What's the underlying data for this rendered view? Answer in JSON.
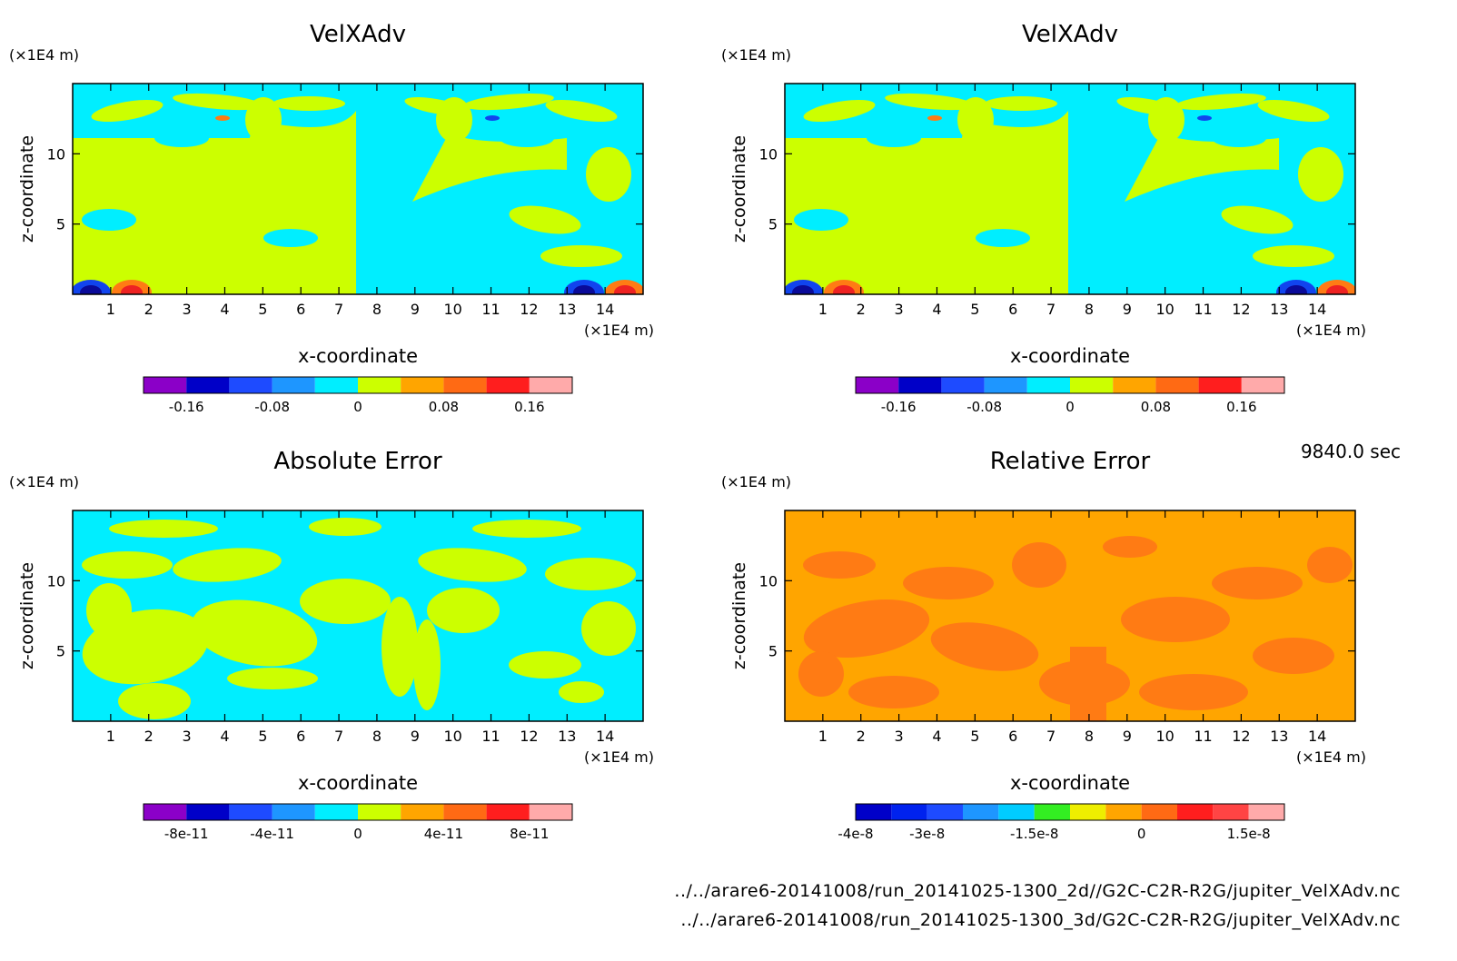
{
  "time_label": "9840.0 sec",
  "file_paths": [
    "../../arare6-20141008/run_20141025-1300_2d//G2C-C2R-R2G/jupiter_VelXAdv.nc",
    "../../arare6-20141008/run_20141025-1300_3d/G2C-C2R-R2G/jupiter_VelXAdv.nc"
  ],
  "colors": {
    "cyan": "#00eeff",
    "yellowgreen": "#ccff00",
    "orange": "#ffa500",
    "darkorange": "#ff7b14",
    "red": "#ee2222",
    "blue": "#1144ee",
    "navy": "#0a0a99"
  },
  "chart_data": [
    {
      "type": "heatmap",
      "title": "VelXAdv",
      "xlabel": "x-coordinate",
      "ylabel": "z-coordinate",
      "x_unit": "(×1E4 m)",
      "y_unit": "(×1E4 m)",
      "x_ticks": [
        "1",
        "2",
        "3",
        "4",
        "5",
        "6",
        "7",
        "8",
        "9",
        "10",
        "11",
        "12",
        "13",
        "14"
      ],
      "y_ticks": [
        "5",
        "10"
      ],
      "xlim": [
        0,
        15
      ],
      "ylim": [
        0,
        15
      ],
      "colorbar": {
        "colors": [
          "#8b00c8",
          "#0000c8",
          "#1e4bff",
          "#1e96ff",
          "#00eeff",
          "#ccff00",
          "#ffa500",
          "#ff6a14",
          "#ff1e1e",
          "#ffaaaa"
        ],
        "tick_labels": [
          "-0.16",
          "-0.08",
          "0",
          "0.08",
          "0.16"
        ],
        "tick_positions": [
          1,
          3,
          5,
          7,
          9
        ]
      },
      "pattern": "velx"
    },
    {
      "type": "heatmap",
      "title": "VelXAdv",
      "xlabel": "x-coordinate",
      "ylabel": "z-coordinate",
      "x_unit": "(×1E4 m)",
      "y_unit": "(×1E4 m)",
      "x_ticks": [
        "1",
        "2",
        "3",
        "4",
        "5",
        "6",
        "7",
        "8",
        "9",
        "10",
        "11",
        "12",
        "13",
        "14"
      ],
      "y_ticks": [
        "5",
        "10"
      ],
      "xlim": [
        0,
        15
      ],
      "ylim": [
        0,
        15
      ],
      "colorbar": {
        "colors": [
          "#8b00c8",
          "#0000c8",
          "#1e4bff",
          "#1e96ff",
          "#00eeff",
          "#ccff00",
          "#ffa500",
          "#ff6a14",
          "#ff1e1e",
          "#ffaaaa"
        ],
        "tick_labels": [
          "-0.16",
          "-0.08",
          "0",
          "0.08",
          "0.16"
        ],
        "tick_positions": [
          1,
          3,
          5,
          7,
          9
        ]
      },
      "pattern": "velx"
    },
    {
      "type": "heatmap",
      "title": "Absolute Error",
      "xlabel": "x-coordinate",
      "ylabel": "z-coordinate",
      "x_unit": "(×1E4 m)",
      "y_unit": "(×1E4 m)",
      "x_ticks": [
        "1",
        "2",
        "3",
        "4",
        "5",
        "6",
        "7",
        "8",
        "9",
        "10",
        "11",
        "12",
        "13",
        "14"
      ],
      "y_ticks": [
        "5",
        "10"
      ],
      "xlim": [
        0,
        15
      ],
      "ylim": [
        0,
        15
      ],
      "colorbar": {
        "colors": [
          "#8b00c8",
          "#0000c8",
          "#1e4bff",
          "#1e96ff",
          "#00eeff",
          "#ccff00",
          "#ffa500",
          "#ff6a14",
          "#ff1e1e",
          "#ffaaaa"
        ],
        "tick_labels": [
          "-8e-11",
          "-4e-11",
          "0",
          "4e-11",
          "8e-11"
        ],
        "tick_positions": [
          1,
          3,
          5,
          7,
          9
        ]
      },
      "pattern": "abs"
    },
    {
      "type": "heatmap",
      "title": "Relative Error",
      "xlabel": "x-coordinate",
      "ylabel": "z-coordinate",
      "x_unit": "(×1E4 m)",
      "y_unit": "(×1E4 m)",
      "x_ticks": [
        "1",
        "2",
        "3",
        "4",
        "5",
        "6",
        "7",
        "8",
        "9",
        "10",
        "11",
        "12",
        "13",
        "14"
      ],
      "y_ticks": [
        "5",
        "10"
      ],
      "xlim": [
        0,
        15
      ],
      "ylim": [
        0,
        15
      ],
      "colorbar": {
        "colors": [
          "#0000c8",
          "#0022ee",
          "#1e4bff",
          "#1e96ff",
          "#00ccff",
          "#33ee22",
          "#eeee00",
          "#ffa500",
          "#ff6a14",
          "#ff1e1e",
          "#ff4444",
          "#ffaaaa"
        ],
        "tick_labels": [
          "-4e-8",
          "-3e-8",
          "-1.5e-8",
          "0",
          "1.5e-8"
        ],
        "tick_positions": [
          0,
          2,
          5,
          8,
          11
        ]
      },
      "pattern": "rel"
    }
  ]
}
